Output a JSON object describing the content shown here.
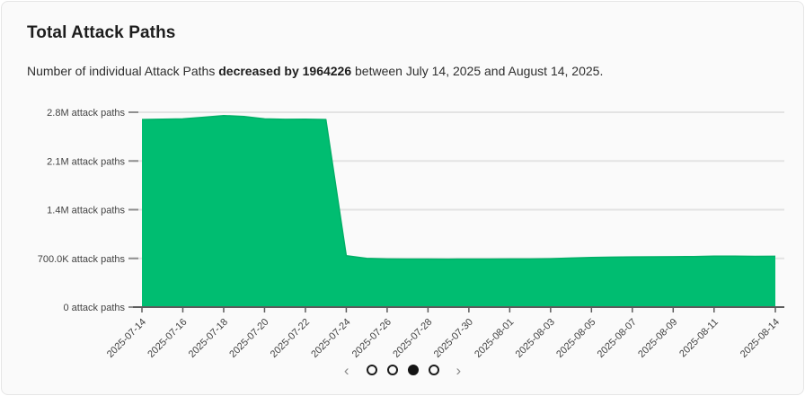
{
  "card": {
    "title": "Total Attack Paths",
    "subtitle_prefix": "Number of individual Attack Paths ",
    "subtitle_bold": "decreased by 1964226",
    "subtitle_suffix": " between July 14, 2025 and August 14, 2025."
  },
  "chart_data": {
    "type": "area",
    "title": "Total Attack Paths",
    "series_name": "Attack Paths",
    "x": [
      "2025-07-14",
      "2025-07-15",
      "2025-07-16",
      "2025-07-17",
      "2025-07-18",
      "2025-07-19",
      "2025-07-20",
      "2025-07-21",
      "2025-07-22",
      "2025-07-23",
      "2025-07-24",
      "2025-07-25",
      "2025-07-26",
      "2025-07-27",
      "2025-07-28",
      "2025-07-29",
      "2025-07-30",
      "2025-07-31",
      "2025-08-01",
      "2025-08-02",
      "2025-08-03",
      "2025-08-04",
      "2025-08-05",
      "2025-08-06",
      "2025-08-07",
      "2025-08-08",
      "2025-08-09",
      "2025-08-10",
      "2025-08-11",
      "2025-08-12",
      "2025-08-13",
      "2025-08-14"
    ],
    "series": [
      {
        "name": "Attack Paths",
        "values": [
          2695000,
          2700000,
          2705000,
          2728000,
          2752000,
          2740000,
          2705000,
          2698000,
          2700000,
          2695000,
          738000,
          700000,
          692000,
          690000,
          690000,
          689000,
          690000,
          690000,
          691000,
          692000,
          696000,
          704000,
          712000,
          718000,
          721000,
          722000,
          724000,
          727000,
          731000,
          731000,
          729000,
          730774
        ]
      }
    ],
    "x_tick_labels": [
      "2025-07-14",
      "2025-07-16",
      "2025-07-18",
      "2025-07-20",
      "2025-07-22",
      "2025-07-24",
      "2025-07-26",
      "2025-07-28",
      "2025-07-30",
      "2025-08-01",
      "2025-08-03",
      "2025-08-05",
      "2025-08-07",
      "2025-08-09",
      "2025-08-11",
      "2025-08-14"
    ],
    "y_tick_values": [
      0,
      700000,
      1400000,
      2100000,
      2800000
    ],
    "y_tick_labels": [
      "0 attack paths",
      "700.0K attack paths",
      "1.4M attack paths",
      "2.1M attack paths",
      "2.8M attack paths"
    ],
    "ylim": [
      0,
      2800000
    ],
    "grid": "horizontal",
    "legend": "none",
    "area_color": "#00bd71",
    "area_stroke_color": "#00b067",
    "gridline_color": "#e3e3e3",
    "axis_color": "#5c5c5c",
    "tick_dash_color": "#8f8f8f",
    "label_color": "#424242"
  },
  "pagination": {
    "prev_icon": "‹",
    "next_icon": "›",
    "dots": 4,
    "active_dot": 2
  }
}
